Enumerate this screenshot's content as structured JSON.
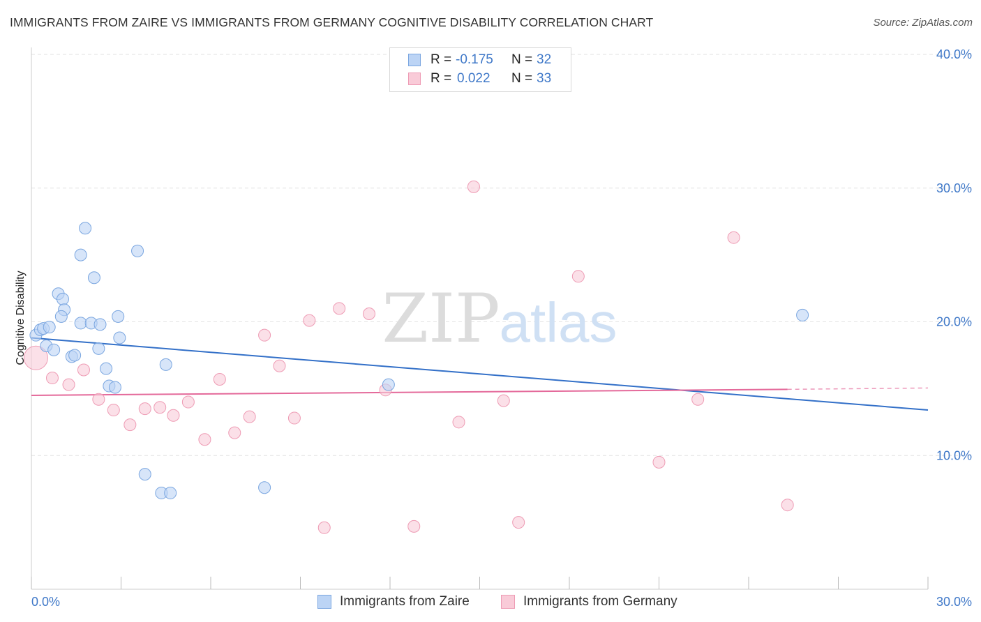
{
  "title": "IMMIGRANTS FROM ZAIRE VS IMMIGRANTS FROM GERMANY COGNITIVE DISABILITY CORRELATION CHART",
  "source": "Source: ZipAtlas.com",
  "watermark": {
    "zip": "ZIP",
    "atlas": "atlas"
  },
  "colors": {
    "zaire_fill": "#bcd4f5",
    "zaire_stroke": "#7aa6e0",
    "zaire_line": "#3370c8",
    "germany_fill": "#f9cbd8",
    "germany_stroke": "#ee9bb4",
    "germany_line": "#e4699a",
    "tick_text": "#3f78c8"
  },
  "legend": {
    "zaire": {
      "r_label": "R =",
      "r_value": "-0.175",
      "n_label": "N =",
      "n_value": "32"
    },
    "germany": {
      "r_label": "R =",
      "r_value": "0.022",
      "n_label": "N =",
      "n_value": "33"
    }
  },
  "chart_data": {
    "type": "scatter",
    "xlabel": "",
    "ylabel": "Cognitive Disability",
    "xlim": [
      0,
      30
    ],
    "ylim": [
      0,
      40
    ],
    "x_tick_labels": [
      "0.0%",
      "30.0%"
    ],
    "y_ticks": [
      10,
      20,
      30,
      40
    ],
    "y_tick_labels": [
      "10.0%",
      "20.0%",
      "30.0%",
      "40.0%"
    ],
    "grid": true,
    "legend_position": "top-center",
    "series": [
      {
        "name": "Immigrants from Zaire",
        "points": [
          [
            0.15,
            19.0
          ],
          [
            0.3,
            19.4
          ],
          [
            0.4,
            19.5
          ],
          [
            0.6,
            19.6
          ],
          [
            0.5,
            18.2
          ],
          [
            0.75,
            17.9
          ],
          [
            0.9,
            22.1
          ],
          [
            1.05,
            21.7
          ],
          [
            1.1,
            20.9
          ],
          [
            1.0,
            20.4
          ],
          [
            1.35,
            17.4
          ],
          [
            1.45,
            17.5
          ],
          [
            1.65,
            25.0
          ],
          [
            1.8,
            27.0
          ],
          [
            1.65,
            19.9
          ],
          [
            2.0,
            19.9
          ],
          [
            2.1,
            23.3
          ],
          [
            2.3,
            19.8
          ],
          [
            2.25,
            18.0
          ],
          [
            2.5,
            16.5
          ],
          [
            2.6,
            15.2
          ],
          [
            2.8,
            15.1
          ],
          [
            2.9,
            20.4
          ],
          [
            2.95,
            18.8
          ],
          [
            3.55,
            25.3
          ],
          [
            3.8,
            8.6
          ],
          [
            4.5,
            16.8
          ],
          [
            4.35,
            7.2
          ],
          [
            4.65,
            7.2
          ],
          [
            7.8,
            7.6
          ],
          [
            11.95,
            15.3
          ],
          [
            25.8,
            20.5
          ]
        ],
        "trend": {
          "x": [
            0,
            30
          ],
          "y": [
            18.8,
            13.4
          ]
        }
      },
      {
        "name": "Immigrants from Germany",
        "points": [
          [
            0.15,
            17.3
          ],
          [
            0.7,
            15.8
          ],
          [
            1.25,
            15.3
          ],
          [
            1.75,
            16.4
          ],
          [
            2.25,
            14.2
          ],
          [
            2.75,
            13.4
          ],
          [
            3.3,
            12.3
          ],
          [
            3.8,
            13.5
          ],
          [
            4.3,
            13.6
          ],
          [
            4.75,
            13.0
          ],
          [
            5.25,
            14.0
          ],
          [
            5.8,
            11.2
          ],
          [
            6.3,
            15.7
          ],
          [
            6.8,
            11.7
          ],
          [
            7.3,
            12.9
          ],
          [
            7.8,
            19.0
          ],
          [
            8.3,
            16.7
          ],
          [
            8.8,
            12.8
          ],
          [
            9.3,
            20.1
          ],
          [
            9.8,
            4.6
          ],
          [
            10.3,
            21.0
          ],
          [
            11.3,
            20.6
          ],
          [
            11.85,
            14.9
          ],
          [
            12.8,
            4.7
          ],
          [
            14.3,
            12.5
          ],
          [
            14.8,
            30.1
          ],
          [
            15.8,
            14.1
          ],
          [
            16.3,
            5.0
          ],
          [
            18.3,
            23.4
          ],
          [
            21.0,
            9.5
          ],
          [
            22.3,
            14.2
          ],
          [
            23.5,
            26.3
          ],
          [
            25.3,
            6.3
          ]
        ],
        "trend": {
          "x": [
            0,
            25.3
          ],
          "y": [
            14.5,
            14.95
          ]
        },
        "trend_dashed": {
          "x": [
            25.3,
            30
          ],
          "y": [
            14.95,
            15.05
          ]
        }
      }
    ]
  }
}
